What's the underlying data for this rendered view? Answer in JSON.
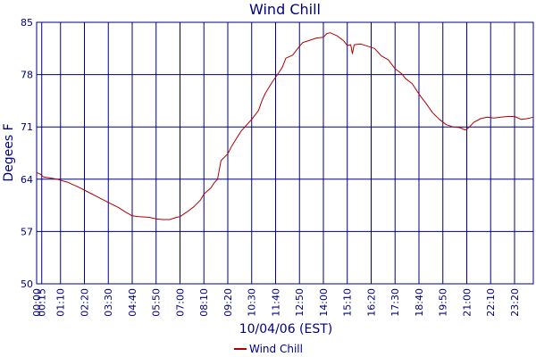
{
  "chart_data": {
    "type": "line",
    "title": "Wind Chill",
    "xlabel": "10/04/06 (EST)",
    "ylabel": "Degees F",
    "ylim": [
      50,
      85
    ],
    "yticks": [
      50,
      57,
      64,
      71,
      78,
      85
    ],
    "xlim": [
      "00:00",
      "24:15"
    ],
    "xticks": [
      "00:00",
      "01:10",
      "02:20",
      "03:30",
      "04:40",
      "05:50",
      "07:00",
      "08:10",
      "09:20",
      "10:30",
      "11:40",
      "12:50",
      "14:00",
      "15:10",
      "16:20",
      "17:30",
      "18:40",
      "19:50",
      "21:00",
      "22:10",
      "23:20",
      "00:15"
    ],
    "grid": true,
    "legend_position": "bottom-center",
    "colors": {
      "series": "#b00000",
      "grid": "#000080",
      "text": "#000080",
      "background": "#ffffff"
    },
    "series": [
      {
        "name": "Wind Chill",
        "x": [
          "00:00",
          "00:10",
          "00:20",
          "00:35",
          "01:00",
          "01:30",
          "02:00",
          "02:30",
          "03:00",
          "03:30",
          "04:00",
          "04:20",
          "04:40",
          "05:00",
          "05:30",
          "05:50",
          "06:10",
          "06:30",
          "06:50",
          "07:00",
          "07:20",
          "07:40",
          "08:00",
          "08:10",
          "08:30",
          "08:40",
          "08:50",
          "09:00",
          "09:20",
          "09:30",
          "09:50",
          "10:00",
          "10:20",
          "10:30",
          "10:50",
          "11:00",
          "11:10",
          "11:30",
          "11:50",
          "12:00",
          "12:10",
          "12:30",
          "12:50",
          "13:00",
          "13:20",
          "13:40",
          "14:00",
          "14:10",
          "14:20",
          "14:30",
          "14:40",
          "15:00",
          "15:10",
          "15:20",
          "15:25",
          "15:30",
          "15:50",
          "16:10",
          "16:30",
          "16:50",
          "17:10",
          "17:30",
          "17:50",
          "18:00",
          "18:20",
          "18:40",
          "19:00",
          "19:20",
          "19:40",
          "20:00",
          "20:20",
          "20:40",
          "20:55",
          "21:00",
          "21:10",
          "21:20",
          "21:40",
          "22:00",
          "22:20",
          "22:40",
          "23:00",
          "23:20",
          "23:40",
          "23:55",
          "24:05",
          "24:15"
        ],
        "y": [
          64.9,
          64.7,
          64.3,
          64.2,
          64.0,
          63.6,
          63.0,
          62.3,
          61.6,
          60.9,
          60.2,
          59.6,
          59.1,
          59.0,
          58.9,
          58.7,
          58.6,
          58.6,
          58.9,
          59.0,
          59.6,
          60.3,
          61.2,
          62.0,
          62.8,
          63.5,
          64.0,
          66.5,
          67.4,
          68.3,
          69.8,
          70.5,
          71.5,
          72.0,
          73.2,
          74.5,
          75.5,
          77.0,
          78.3,
          79.0,
          80.2,
          80.6,
          81.8,
          82.3,
          82.6,
          82.9,
          83.0,
          83.5,
          83.6,
          83.4,
          83.2,
          82.5,
          81.9,
          82.0,
          80.8,
          82.0,
          82.1,
          81.8,
          81.5,
          80.5,
          80.0,
          78.8,
          78.1,
          77.5,
          76.8,
          75.4,
          74.2,
          72.9,
          72.0,
          71.3,
          71.0,
          70.9,
          70.6,
          70.7,
          71.1,
          71.6,
          72.1,
          72.3,
          72.2,
          72.3,
          72.4,
          72.4,
          72.0,
          72.1,
          72.2,
          72.3
        ]
      }
    ]
  }
}
